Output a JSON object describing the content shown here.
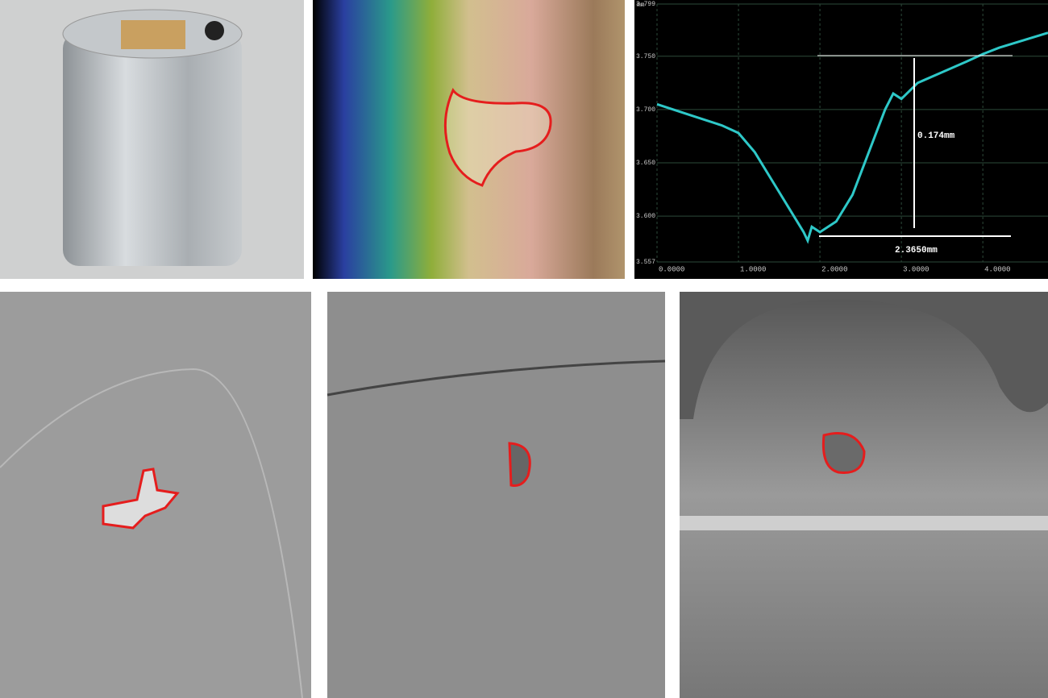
{
  "chart_data": {
    "type": "line",
    "y_label": "mm",
    "x": [
      0,
      0.4,
      0.8,
      1.0,
      1.2,
      1.4,
      1.6,
      1.8,
      1.85,
      1.9,
      2.0,
      2.2,
      2.4,
      2.6,
      2.8,
      2.9,
      3.0,
      3.2,
      3.5,
      3.8,
      4.0,
      4.2,
      4.5,
      4.8
    ],
    "series": [
      {
        "color": "#2ec8c8",
        "values": [
          3.705,
          3.695,
          3.685,
          3.678,
          3.66,
          3.635,
          3.61,
          3.585,
          3.577,
          3.59,
          3.585,
          3.595,
          3.62,
          3.66,
          3.7,
          3.715,
          3.71,
          3.725,
          3.735,
          3.745,
          3.752,
          3.758,
          3.765,
          3.772
        ]
      }
    ],
    "xlim": [
      0,
      4.8
    ],
    "ylim": [
      3.557,
      3.799
    ],
    "xticks": [
      {
        "value": 0,
        "label": "0.0000"
      },
      {
        "value": 1,
        "label": "1.0000"
      },
      {
        "value": 2,
        "label": "2.0000"
      },
      {
        "value": 3,
        "label": "3.0000"
      },
      {
        "value": 4,
        "label": "4.0000"
      }
    ],
    "yticks": [
      3.557,
      {
        "value": 3.6,
        "label": "3.600"
      },
      {
        "value": 3.65,
        "label": "3.650"
      },
      {
        "value": 3.7,
        "label": "3.700"
      },
      {
        "value": 3.75,
        "label": "3.750"
      },
      3.799
    ],
    "grid": true,
    "annotations": [
      "0.174mm",
      "2.3650mm"
    ]
  }
}
